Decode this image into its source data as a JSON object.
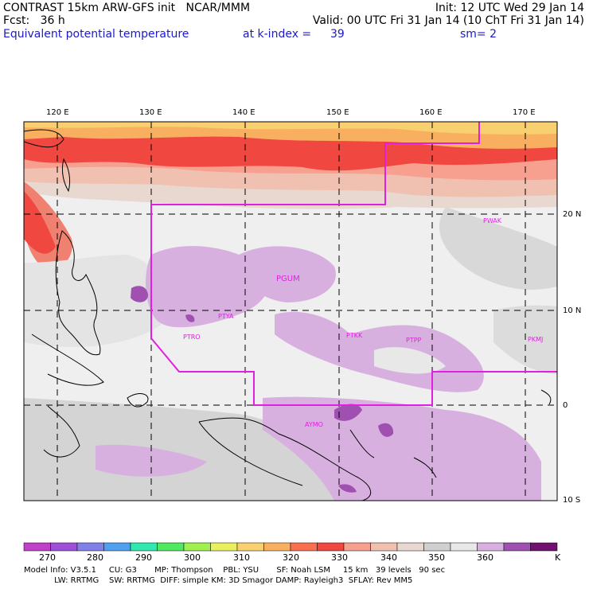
{
  "header": {
    "line1_left": "CONTRAST 15km ARW-GFS init   NCAR/MMM",
    "line1_right": "Init: 12 UTC Wed 29 Jan 14",
    "line2_left": "Fcst:   36 h",
    "line2_right": "Valid: 00 UTC Fri 31 Jan 14 (10 ChT Fri 31 Jan 14)",
    "field": "Equivalent potential temperature",
    "level_label": "at k-index =",
    "level_value": "39",
    "smoothing": "sm= 2"
  },
  "axes": {
    "lon_labels": [
      "120 E",
      "130 E",
      "140 E",
      "150 E",
      "160 E",
      "170 E"
    ],
    "lat_labels": [
      "20 N",
      "10 N",
      "0",
      "10 S"
    ]
  },
  "stations": [
    "PWAK",
    "PGUM",
    "PTYA",
    "PTRO",
    "PTKK",
    "PTPP",
    "PKMJ",
    "AYMO"
  ],
  "colorbar": {
    "unit": "K",
    "labels": [
      "270",
      "280",
      "290",
      "300",
      "310",
      "320",
      "330",
      "340",
      "350",
      "360"
    ],
    "colors": [
      "#c040c8",
      "#a050d8",
      "#8080e8",
      "#50a0f0",
      "#30e8b0",
      "#50e860",
      "#a0f050",
      "#e8f060",
      "#f8d070",
      "#f8b060",
      "#f87050",
      "#f04840",
      "#f8a090",
      "#f0c0b0",
      "#e8d8d0",
      "#d0d0d0",
      "#e8e8e8",
      "#d8b0e0",
      "#a050b0",
      "#701070"
    ]
  },
  "model_info": {
    "line1": "Model Info: V3.5.1     CU: G3       MP: Thompson    PBL: YSU       SF: Noah LSM     15 km   39 levels   90 sec",
    "line2": "            LW: RRTMG    SW: RRTMG  DIFF: simple KM: 3D Smagor DAMP: Rayleigh3  SFLAY: Rev MM5"
  }
}
